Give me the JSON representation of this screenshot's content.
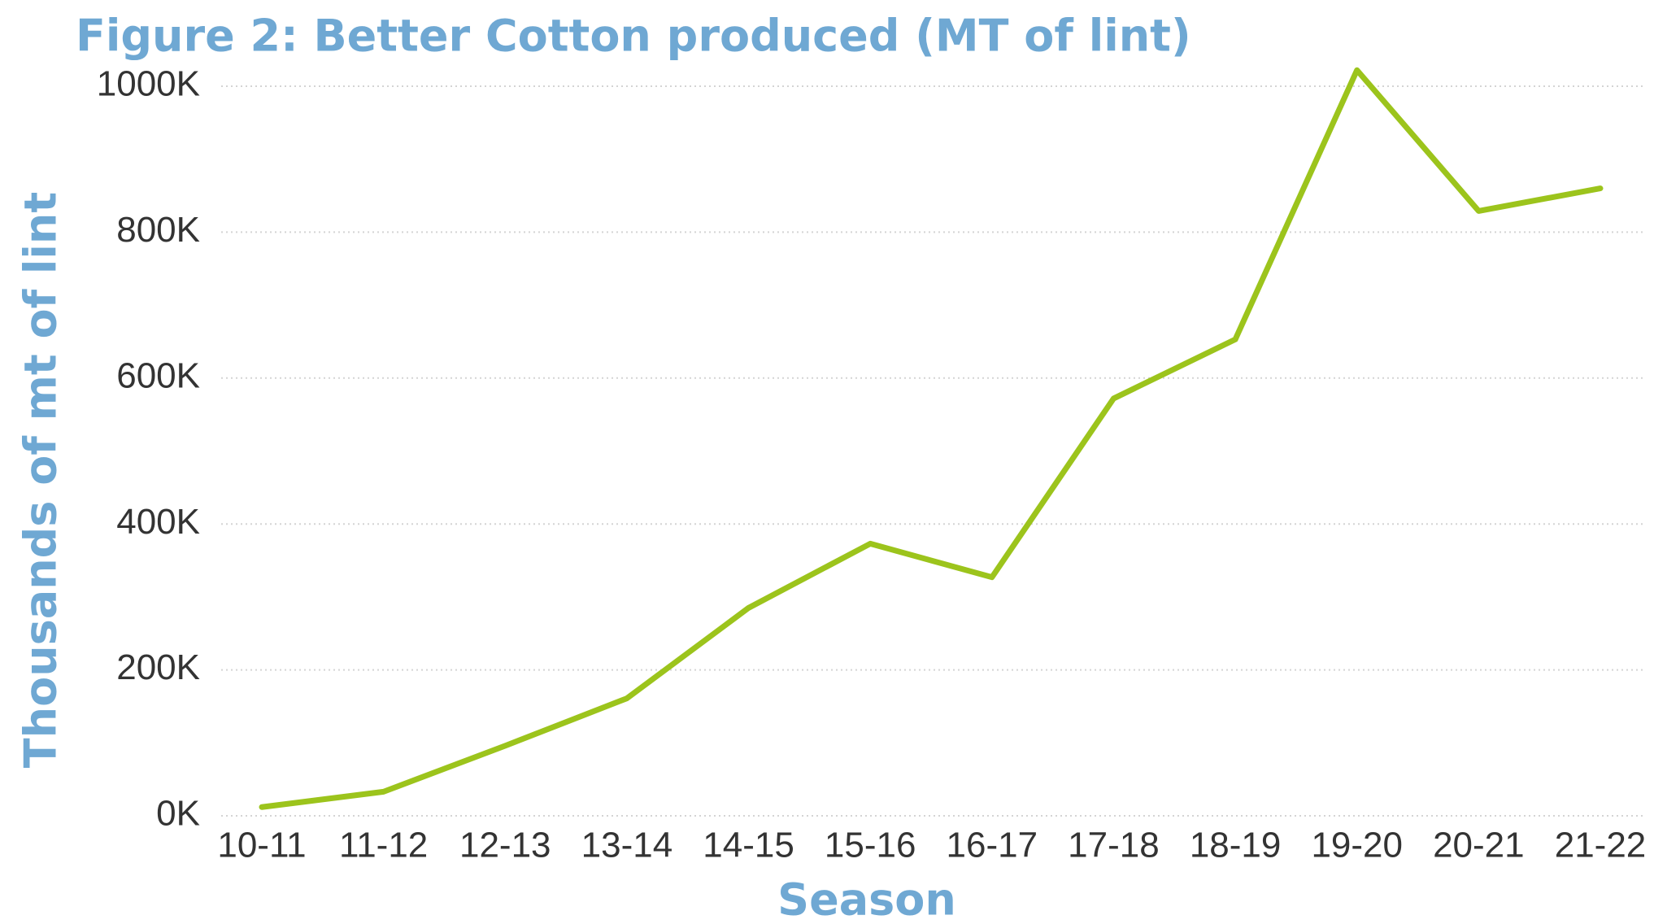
{
  "chart_data": {
    "type": "line",
    "title": "Figure 2: Better Cotton produced (MT of lint)",
    "x_label": "Season",
    "y_label": "Thousands of mt of lint",
    "categories": [
      "10-11",
      "11-12",
      "12-13",
      "13-14",
      "14-15",
      "15-16",
      "16-17",
      "17-18",
      "18-19",
      "19-20",
      "20-21",
      "21-22"
    ],
    "series": [
      {
        "name": "Better Cotton produced",
        "color": "#9cc41c",
        "values": [
          12000,
          33000,
          96000,
          161000,
          285000,
          373000,
          327000,
          572000,
          653000,
          1022000,
          829000,
          860000
        ]
      }
    ],
    "ylim": [
      0,
      1000000
    ],
    "yticks": [
      {
        "value": 0,
        "label": "0K"
      },
      {
        "value": 200000,
        "label": "200K"
      },
      {
        "value": 400000,
        "label": "400K"
      },
      {
        "value": 600000,
        "label": "600K"
      },
      {
        "value": 800000,
        "label": "800K"
      },
      {
        "value": 1000000,
        "label": "1000K"
      }
    ],
    "grid": true
  }
}
